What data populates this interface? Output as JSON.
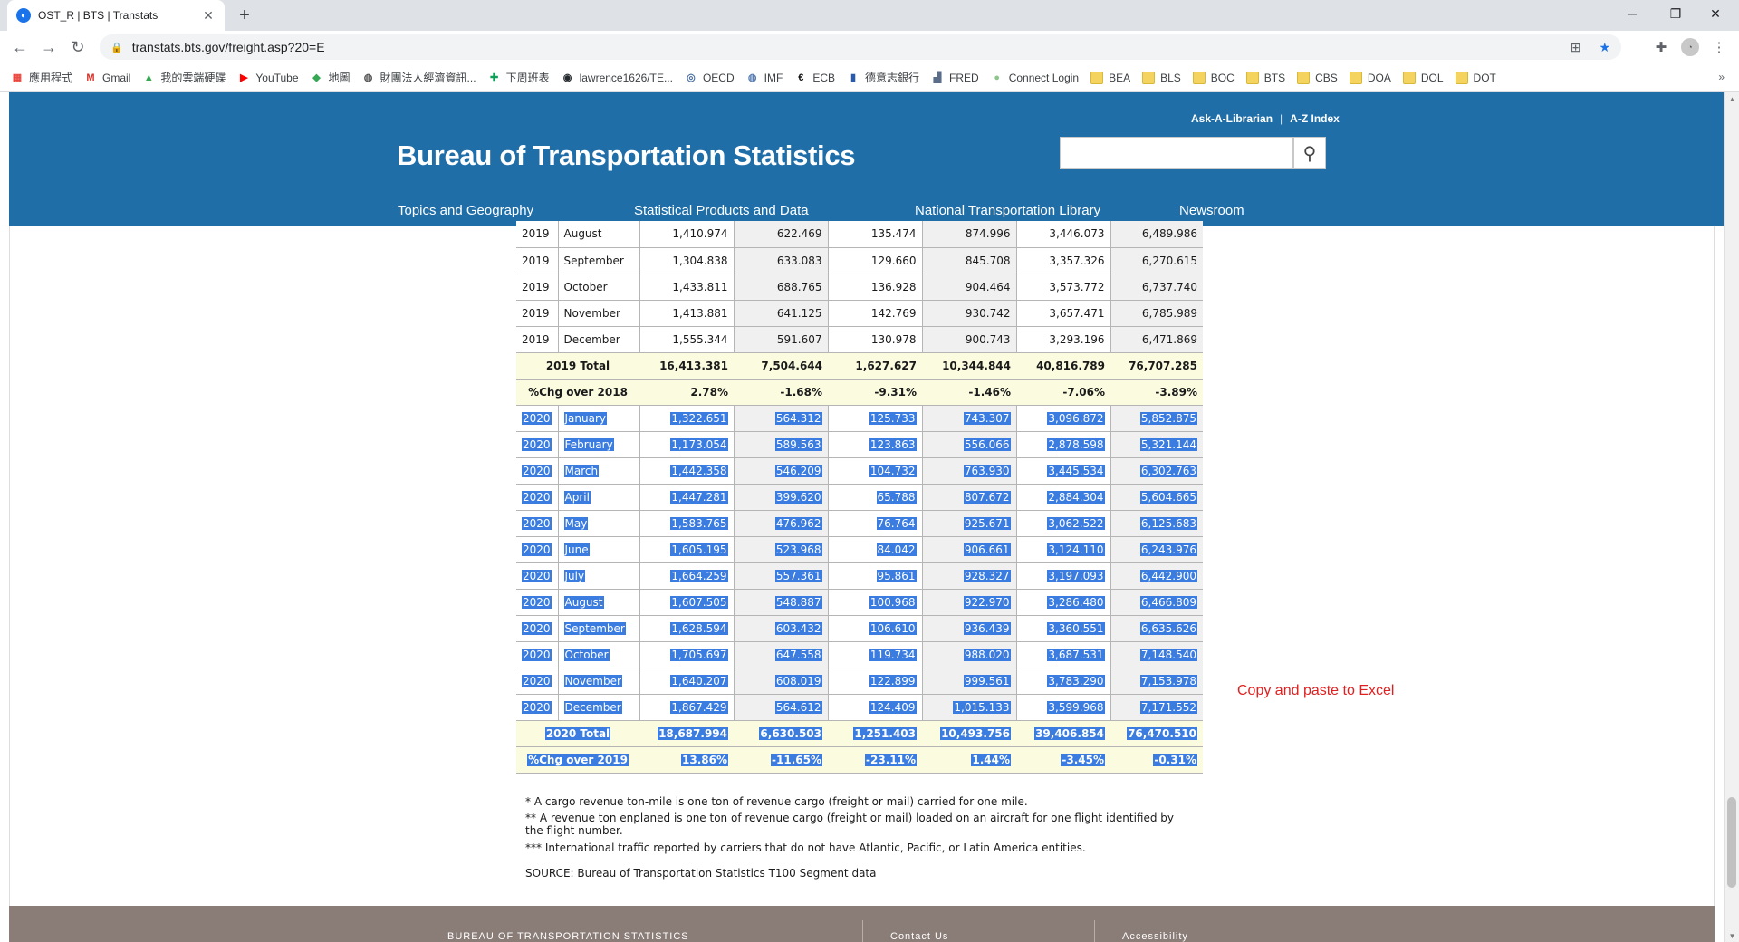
{
  "browser": {
    "tab_title": "OST_R | BTS | Transtats",
    "url": "transtats.bts.gov/freight.asp?20=E",
    "bookmarks": [
      {
        "label": "應用程式",
        "icon": "apps-grid-icon"
      },
      {
        "label": "Gmail",
        "icon": "gmail-icon"
      },
      {
        "label": "我的雲端硬碟",
        "icon": "google-drive-icon"
      },
      {
        "label": "YouTube",
        "icon": "youtube-icon"
      },
      {
        "label": "地圖",
        "icon": "maps-icon"
      },
      {
        "label": "財團法人經濟資訊...",
        "icon": "globe-icon"
      },
      {
        "label": "下周班表",
        "icon": "sheets-icon"
      },
      {
        "label": "lawrence1626/TE...",
        "icon": "github-icon"
      },
      {
        "label": "OECD",
        "icon": "oecd-icon"
      },
      {
        "label": "IMF",
        "icon": "imf-icon"
      },
      {
        "label": "ECB",
        "icon": "ecb-icon"
      },
      {
        "label": "德意志銀行",
        "icon": "bank-icon"
      },
      {
        "label": "FRED",
        "icon": "chart-icon"
      },
      {
        "label": "Connect Login",
        "icon": "connect-icon"
      },
      {
        "label": "BEA",
        "icon": "folder-icon"
      },
      {
        "label": "BLS",
        "icon": "folder-icon"
      },
      {
        "label": "BOC",
        "icon": "folder-icon"
      },
      {
        "label": "BTS",
        "icon": "folder-icon"
      },
      {
        "label": "CBS",
        "icon": "folder-icon"
      },
      {
        "label": "DOA",
        "icon": "folder-icon"
      },
      {
        "label": "DOL",
        "icon": "folder-icon"
      },
      {
        "label": "DOT",
        "icon": "folder-icon"
      }
    ],
    "more_bookmarks": "»"
  },
  "header": {
    "ask_librarian": "Ask-A-Librarian",
    "az_index": "A-Z Index",
    "title": "Bureau of Transportation Statistics",
    "search_placeholder": "",
    "nav": [
      "Topics and Geography",
      "Statistical Products and Data",
      "National Transportation Library",
      "Newsroom"
    ]
  },
  "table": {
    "rows": [
      {
        "type": "month",
        "year": "2019",
        "month": "August",
        "values": [
          "1,410.974",
          "622.469",
          "135.474",
          "874.996",
          "3,446.073",
          "6,489.986"
        ],
        "selected": false
      },
      {
        "type": "month",
        "year": "2019",
        "month": "September",
        "values": [
          "1,304.838",
          "633.083",
          "129.660",
          "845.708",
          "3,357.326",
          "6,270.615"
        ],
        "selected": false
      },
      {
        "type": "month",
        "year": "2019",
        "month": "October",
        "values": [
          "1,433.811",
          "688.765",
          "136.928",
          "904.464",
          "3,573.772",
          "6,737.740"
        ],
        "selected": false
      },
      {
        "type": "month",
        "year": "2019",
        "month": "November",
        "values": [
          "1,413.881",
          "641.125",
          "142.769",
          "930.742",
          "3,657.471",
          "6,785.989"
        ],
        "selected": false
      },
      {
        "type": "month",
        "year": "2019",
        "month": "December",
        "values": [
          "1,555.344",
          "591.607",
          "130.978",
          "900.743",
          "3,293.196",
          "6,471.869"
        ],
        "selected": false
      },
      {
        "type": "total",
        "label": "2019 Total",
        "values": [
          "16,413.381",
          "7,504.644",
          "1,627.627",
          "10,344.844",
          "40,816.789",
          "76,707.285"
        ],
        "selected": false
      },
      {
        "type": "total",
        "label": "%Chg over 2018",
        "values": [
          "2.78%",
          "-1.68%",
          "-9.31%",
          "-1.46%",
          "-7.06%",
          "-3.89%"
        ],
        "selected": false
      },
      {
        "type": "month",
        "year": "2020",
        "month": "January",
        "values": [
          "1,322.651",
          "564.312",
          "125.733",
          "743.307",
          "3,096.872",
          "5,852.875"
        ],
        "selected": true
      },
      {
        "type": "month",
        "year": "2020",
        "month": "February",
        "values": [
          "1,173.054",
          "589.563",
          "123.863",
          "556.066",
          "2,878.598",
          "5,321.144"
        ],
        "selected": true
      },
      {
        "type": "month",
        "year": "2020",
        "month": "March",
        "values": [
          "1,442.358",
          "546.209",
          "104.732",
          "763.930",
          "3,445.534",
          "6,302.763"
        ],
        "selected": true
      },
      {
        "type": "month",
        "year": "2020",
        "month": "April",
        "values": [
          "1,447.281",
          "399.620",
          "65.788",
          "807.672",
          "2,884.304",
          "5,604.665"
        ],
        "selected": true
      },
      {
        "type": "month",
        "year": "2020",
        "month": "May",
        "values": [
          "1,583.765",
          "476.962",
          "76.764",
          "925.671",
          "3,062.522",
          "6,125.683"
        ],
        "selected": true
      },
      {
        "type": "month",
        "year": "2020",
        "month": "June",
        "values": [
          "1,605.195",
          "523.968",
          "84.042",
          "906.661",
          "3,124.110",
          "6,243.976"
        ],
        "selected": true
      },
      {
        "type": "month",
        "year": "2020",
        "month": "July",
        "values": [
          "1,664.259",
          "557.361",
          "95.861",
          "928.327",
          "3,197.093",
          "6,442.900"
        ],
        "selected": true
      },
      {
        "type": "month",
        "year": "2020",
        "month": "August",
        "values": [
          "1,607.505",
          "548.887",
          "100.968",
          "922.970",
          "3,286.480",
          "6,466.809"
        ],
        "selected": true
      },
      {
        "type": "month",
        "year": "2020",
        "month": "September",
        "values": [
          "1,628.594",
          "603.432",
          "106.610",
          "936.439",
          "3,360.551",
          "6,635.626"
        ],
        "selected": true
      },
      {
        "type": "month",
        "year": "2020",
        "month": "October",
        "values": [
          "1,705.697",
          "647.558",
          "119.734",
          "988.020",
          "3,687.531",
          "7,148.540"
        ],
        "selected": true
      },
      {
        "type": "month",
        "year": "2020",
        "month": "November",
        "values": [
          "1,640.207",
          "608.019",
          "122.899",
          "999.561",
          "3,783.290",
          "7,153.978"
        ],
        "selected": true
      },
      {
        "type": "month",
        "year": "2020",
        "month": "December",
        "values": [
          "1,867.429",
          "564.612",
          "124.409",
          "1,015.133",
          "3,599.968",
          "7,171.552"
        ],
        "selected": true
      },
      {
        "type": "total",
        "label": "2020 Total",
        "values": [
          "18,687.994",
          "6,630.503",
          "1,251.403",
          "10,493.756",
          "39,406.854",
          "76,470.510"
        ],
        "selected": true
      },
      {
        "type": "total",
        "label": "%Chg over 2019",
        "values": [
          "13.86%",
          "-11.65%",
          "-23.11%",
          "1.44%",
          "-3.45%",
          "-0.31%"
        ],
        "selected": true
      }
    ]
  },
  "notes": {
    "note1": "* A cargo revenue ton-mile is one ton of revenue cargo (freight or mail) carried for one mile.",
    "note2": "** A revenue ton enplaned is one ton of revenue cargo (freight or mail) loaded on an aircraft for one flight identified by the flight number.",
    "note3": "*** International traffic reported by carriers that do not have Atlantic, Pacific, or Latin America entities.",
    "source": "SOURCE: Bureau of Transportation Statistics T100 Segment data"
  },
  "annotation": "Copy and paste to Excel",
  "footer": {
    "col1": "BUREAU OF TRANSPORTATION STATISTICS",
    "col2": "Contact Us",
    "col3": "Accessibility"
  },
  "colors": {
    "header_blue": "#1f6ea8",
    "selection_blue": "#3a7ce0",
    "total_row_bg": "#fbfbdf",
    "annotation_red": "#e02020",
    "footer_bg": "#8a7d78"
  }
}
